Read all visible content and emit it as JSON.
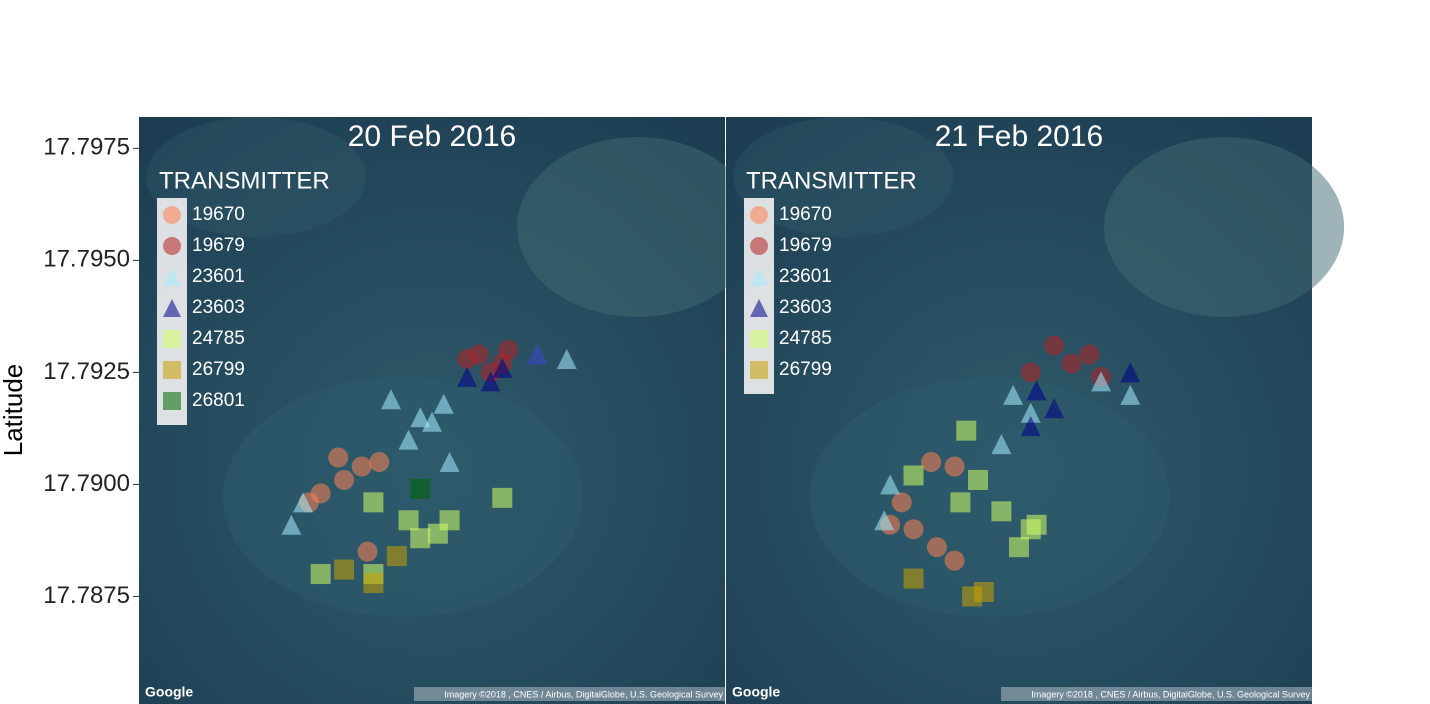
{
  "chart_data": [
    {
      "type": "scatter",
      "title": "20 Feb 2016",
      "y_label": "Latitude",
      "legend_title": "TRANSMITTER",
      "legend": "top-left",
      "credit": "Google",
      "attribution": "Imagery ©2018 , CNES / Airbus, DigitalGlobe, U.S. Geological Survey",
      "xlim": [
        0,
        1
      ],
      "ylim": [
        17.7851,
        17.7982
      ],
      "yticks": [
        {
          "value": 17.7975,
          "label": "17.7975"
        },
        {
          "value": 17.795,
          "label": "17.7950"
        },
        {
          "value": 17.7925,
          "label": "17.7925"
        },
        {
          "value": 17.79,
          "label": "17.7900"
        },
        {
          "value": 17.7875,
          "label": "17.7875"
        }
      ],
      "series": [
        {
          "name": "19670",
          "color": "#ff7f50",
          "shape": "circle",
          "x": [
            0.34,
            0.38,
            0.41,
            0.31,
            0.35,
            0.39,
            0.29
          ],
          "values": [
            17.7906,
            17.7904,
            17.7905,
            17.7898,
            17.7901,
            17.7885,
            17.7896
          ]
        },
        {
          "name": "19679",
          "color": "#b22222",
          "shape": "circle",
          "x": [
            0.58,
            0.62,
            0.63,
            0.56,
            0.6
          ],
          "values": [
            17.7929,
            17.7927,
            17.793,
            17.7928,
            17.7925
          ]
        },
        {
          "name": "23601",
          "color": "#a6ecff",
          "shape": "triangle",
          "x": [
            0.48,
            0.5,
            0.52,
            0.43,
            0.28,
            0.26,
            0.53,
            0.68,
            0.73,
            0.46
          ],
          "values": [
            17.7915,
            17.7914,
            17.7918,
            17.7919,
            17.7896,
            17.7891,
            17.7905,
            17.7929,
            17.7928,
            17.791
          ]
        },
        {
          "name": "23603",
          "color": "#00008b",
          "shape": "triangle",
          "x": [
            0.56,
            0.62,
            0.68,
            0.6
          ],
          "values": [
            17.7924,
            17.7926,
            17.7929,
            17.7923
          ]
        },
        {
          "name": "24785",
          "color": "#d4ff66",
          "shape": "square",
          "x": [
            0.31,
            0.48,
            0.53,
            0.51,
            0.4,
            0.4,
            0.62,
            0.46
          ],
          "values": [
            17.788,
            17.7888,
            17.7892,
            17.7889,
            17.7896,
            17.788,
            17.7897,
            17.7892
          ]
        },
        {
          "name": "26799",
          "color": "#c8a000",
          "shape": "square",
          "x": [
            0.4,
            0.35,
            0.44
          ],
          "values": [
            17.7878,
            17.7881,
            17.7884
          ]
        },
        {
          "name": "26801",
          "color": "#006400",
          "shape": "square",
          "x": [
            0.48
          ],
          "values": [
            17.7899
          ]
        }
      ]
    },
    {
      "type": "scatter",
      "title": "21 Feb 2016",
      "legend_title": "TRANSMITTER",
      "legend": "top-left",
      "credit": "Google",
      "attribution": "Imagery ©2018 , CNES / Airbus, DigitalGlobe, U.S. Geological Survey",
      "xlim": [
        0,
        1
      ],
      "ylim": [
        17.7851,
        17.7982
      ],
      "series": [
        {
          "name": "19670",
          "color": "#ff7f50",
          "shape": "circle",
          "x": [
            0.35,
            0.39,
            0.3,
            0.32,
            0.36,
            0.39,
            0.28
          ],
          "values": [
            17.7905,
            17.7904,
            17.7896,
            17.789,
            17.7886,
            17.7883,
            17.7891
          ]
        },
        {
          "name": "19679",
          "color": "#b22222",
          "shape": "circle",
          "x": [
            0.59,
            0.62,
            0.52,
            0.56,
            0.64
          ],
          "values": [
            17.7927,
            17.7929,
            17.7925,
            17.7931,
            17.7924
          ]
        },
        {
          "name": "23601",
          "color": "#a6ecff",
          "shape": "triangle",
          "x": [
            0.49,
            0.52,
            0.47,
            0.64,
            0.27,
            0.28,
            0.69
          ],
          "values": [
            17.792,
            17.7916,
            17.7909,
            17.7923,
            17.7892,
            17.79,
            17.792
          ]
        },
        {
          "name": "23603",
          "color": "#00008b",
          "shape": "triangle",
          "x": [
            0.53,
            0.56,
            0.52,
            0.69
          ],
          "values": [
            17.7921,
            17.7917,
            17.7913,
            17.7925
          ]
        },
        {
          "name": "24785",
          "color": "#d4ff66",
          "shape": "square",
          "x": [
            0.4,
            0.52,
            0.47,
            0.53,
            0.32,
            0.43,
            0.5,
            0.41
          ],
          "values": [
            17.7896,
            17.789,
            17.7894,
            17.7891,
            17.7902,
            17.7901,
            17.7886,
            17.7912
          ]
        },
        {
          "name": "26799",
          "color": "#c8a000",
          "shape": "square",
          "x": [
            0.32,
            0.42,
            0.44
          ],
          "values": [
            17.7879,
            17.7875,
            17.7876
          ]
        }
      ]
    }
  ]
}
